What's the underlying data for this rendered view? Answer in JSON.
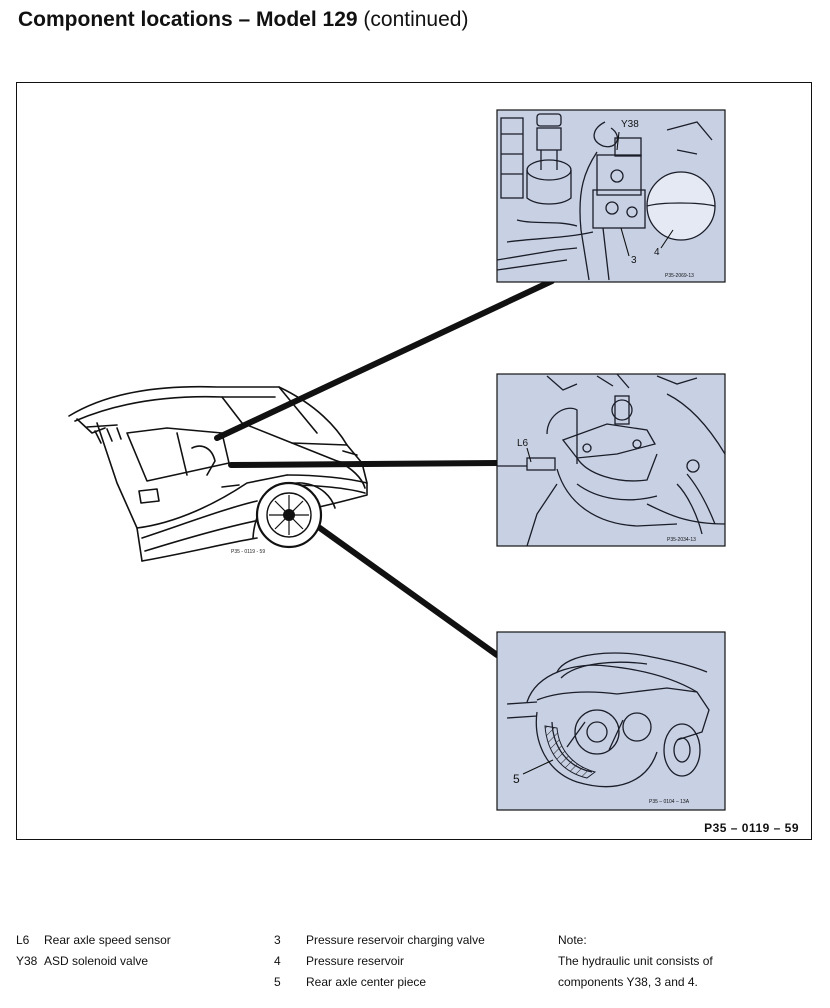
{
  "header": {
    "title_bold": "Component locations – Model 129",
    "title_normal": "(continued)"
  },
  "figure": {
    "reference_code": "P35 – 0119 – 59",
    "photos": [
      {
        "name": "hydraulic-unit",
        "callouts": [
          "Y38",
          "3",
          "4"
        ],
        "photo_code": "P35-2069-13"
      },
      {
        "name": "rear-axle-sensor",
        "callouts": [
          "L6"
        ],
        "photo_code": "P35-2034-13"
      },
      {
        "name": "rear-axle-center-piece",
        "callouts": [
          "5"
        ],
        "photo_code": "P35 – 0104 – 13A"
      }
    ],
    "colors": {
      "photo_tint": "#c8d1e4",
      "line": "#111111"
    }
  },
  "legend": {
    "column1": [
      {
        "code": "L6",
        "label": "Rear axle speed sensor"
      },
      {
        "code": "Y38",
        "label": "ASD solenoid valve"
      }
    ],
    "column2": [
      {
        "code": "3",
        "label": "Pressure reservoir charging valve"
      },
      {
        "code": "4",
        "label": "Pressure reservoir"
      },
      {
        "code": "5",
        "label": "Rear axle center piece"
      }
    ],
    "note": {
      "heading": "Note:",
      "lines": [
        "The hydraulic unit consists of",
        "components Y38, 3 and 4."
      ]
    }
  }
}
